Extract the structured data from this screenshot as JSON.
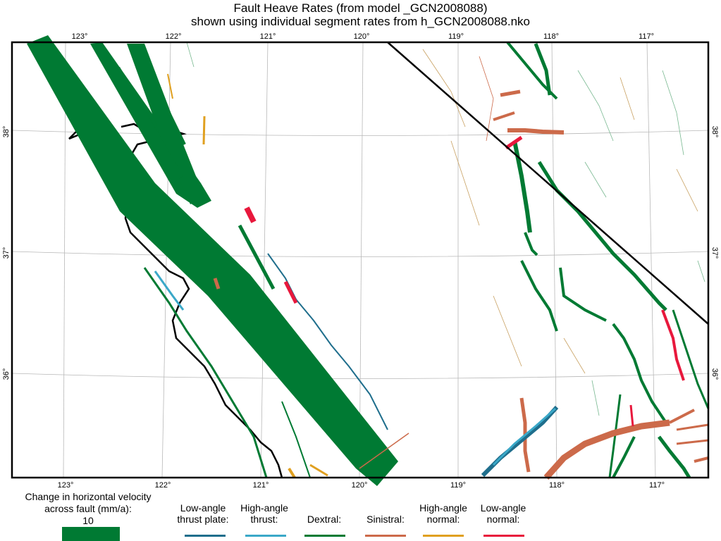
{
  "title": {
    "line1": "Fault Heave Rates (from model _GCN2008088)",
    "line2": "shown using individual segment rates from h_GCN2008088.nko"
  },
  "axes": {
    "longitude_labels": [
      "123°",
      "122°",
      "121°",
      "120°",
      "119°",
      "118°",
      "117°"
    ],
    "latitude_labels": [
      "38°",
      "37°",
      "36°"
    ]
  },
  "legend": {
    "scale_caption_line1": "Change in horizontal velocity",
    "scale_caption_line2": "across fault (mm/a):",
    "scale_value": "10",
    "scale_color": "#007a33",
    "items": [
      {
        "line1": "Low-angle",
        "line2": "thrust plate:",
        "color": "#1f6e8c"
      },
      {
        "line1": "High-angle",
        "line2": "thrust:",
        "color": "#3aa8c8"
      },
      {
        "line1": "",
        "line2": "Dextral:",
        "color": "#007a33"
      },
      {
        "line1": "",
        "line2": "Sinistral:",
        "color": "#cc6a4a"
      },
      {
        "line1": "High-angle",
        "line2": "normal:",
        "color": "#e0a020"
      },
      {
        "line1": "Low-angle",
        "line2": "normal:",
        "color": "#e8183c"
      }
    ]
  }
}
